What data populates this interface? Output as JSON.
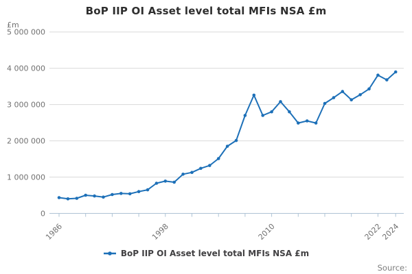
{
  "title": "BoP IIP OI Asset level total MFIs NSA £m",
  "y_axis_unit": "£m",
  "source_label": "Source:",
  "legend": {
    "label": "BoP IIP OI Asset level total MFIs NSA £m"
  },
  "colors": {
    "line": "#1d70b8",
    "grid": "#d9d9d9",
    "axis": "#aec3d5",
    "muted_text": "#707070",
    "title_text": "#2e2e2e",
    "legend_text": "#414042",
    "source_text": "#7d7d7d"
  },
  "chart_data": {
    "type": "line",
    "title": "BoP IIP OI Asset level total MFIs NSA £m",
    "xlabel": "",
    "ylabel": "£m",
    "ylim": [
      0,
      5000000
    ],
    "grid": "horizontal",
    "legend_position": "bottom",
    "marker": "circle",
    "x": [
      1986,
      1987,
      1988,
      1989,
      1990,
      1991,
      1992,
      1993,
      1994,
      1995,
      1996,
      1997,
      1998,
      1999,
      2000,
      2001,
      2002,
      2003,
      2004,
      2005,
      2006,
      2007,
      2008,
      2009,
      2010,
      2011,
      2012,
      2013,
      2014,
      2015,
      2016,
      2017,
      2018,
      2019,
      2020,
      2021,
      2022,
      2023,
      2024
    ],
    "series": [
      {
        "name": "BoP IIP OI Asset level total MFIs NSA £m",
        "values": [
          435000,
          400000,
          415000,
          500000,
          480000,
          450000,
          520000,
          550000,
          540000,
          600000,
          650000,
          830000,
          890000,
          860000,
          1080000,
          1130000,
          1240000,
          1320000,
          1510000,
          1850000,
          2010000,
          2700000,
          3260000,
          2700000,
          2800000,
          3080000,
          2800000,
          2490000,
          2550000,
          2490000,
          3030000,
          3190000,
          3360000,
          3130000,
          3270000,
          3430000,
          3810000,
          3680000,
          3900000
        ]
      }
    ],
    "y_ticks": [
      0,
      1000000,
      2000000,
      3000000,
      4000000,
      5000000
    ],
    "y_tick_labels": [
      "0",
      "1 000 000",
      "2 000 000",
      "3 000 000",
      "4 000 000",
      "5 000 000"
    ],
    "x_ticks": [
      1986,
      1989,
      1992,
      1995,
      1998,
      2001,
      2004,
      2007,
      2010,
      2013,
      2016,
      2019,
      2022,
      2024
    ],
    "x_tick_labels_shown": [
      "1986",
      "1998",
      "2010",
      "2022",
      "2024"
    ]
  }
}
